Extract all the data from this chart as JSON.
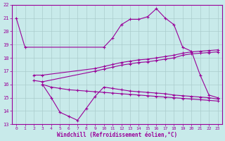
{
  "xlabel": "Windchill (Refroidissement éolien,°C)",
  "ylabel": "",
  "bg_color": "#c8eaea",
  "line_color": "#990099",
  "grid_color": "#aacccc",
  "xlim": [
    -0.5,
    23.5
  ],
  "ylim": [
    13,
    22
  ],
  "yticks": [
    13,
    14,
    15,
    16,
    17,
    18,
    19,
    20,
    21,
    22
  ],
  "xticks": [
    0,
    1,
    2,
    3,
    4,
    5,
    6,
    7,
    8,
    9,
    10,
    11,
    12,
    13,
    14,
    15,
    16,
    17,
    18,
    19,
    20,
    21,
    22,
    23
  ],
  "line1_x": [
    0,
    1,
    10,
    11,
    12,
    13,
    14,
    15,
    16,
    17,
    18,
    19,
    20,
    21,
    22,
    23
  ],
  "line1_y": [
    21.0,
    18.8,
    18.8,
    19.5,
    20.5,
    20.9,
    20.9,
    21.1,
    21.7,
    21.0,
    20.5,
    18.8,
    18.5,
    16.7,
    15.2,
    15.0
  ],
  "line2_x": [
    2,
    3,
    9,
    10,
    11,
    12,
    13,
    14,
    15,
    16,
    17,
    18,
    19,
    20,
    21,
    22,
    23
  ],
  "line2_y": [
    16.7,
    16.7,
    17.2,
    17.35,
    17.5,
    17.65,
    17.75,
    17.85,
    17.9,
    18.0,
    18.1,
    18.2,
    18.35,
    18.45,
    18.5,
    18.55,
    18.6
  ],
  "line3_x": [
    2,
    3,
    9,
    10,
    11,
    12,
    13,
    14,
    15,
    16,
    17,
    18,
    19,
    20,
    21,
    22,
    23
  ],
  "line3_y": [
    16.3,
    16.2,
    17.0,
    17.15,
    17.3,
    17.45,
    17.55,
    17.65,
    17.7,
    17.8,
    17.9,
    18.0,
    18.2,
    18.3,
    18.35,
    18.4,
    18.45
  ],
  "line4_x": [
    3,
    4,
    5,
    6,
    7,
    8,
    9,
    10,
    11,
    12,
    13,
    14,
    15,
    16,
    17,
    18,
    19,
    20,
    21,
    22,
    23
  ],
  "line4_y": [
    16.0,
    15.0,
    13.9,
    13.6,
    13.3,
    14.2,
    15.1,
    15.8,
    15.7,
    15.6,
    15.5,
    15.45,
    15.4,
    15.35,
    15.3,
    15.2,
    15.15,
    15.1,
    15.05,
    15.0,
    14.9
  ],
  "line5_x": [
    3,
    4,
    5,
    6,
    7,
    8,
    9,
    10,
    11,
    12,
    13,
    14,
    15,
    16,
    17,
    18,
    19,
    20,
    21,
    22,
    23
  ],
  "line5_y": [
    16.0,
    15.8,
    15.7,
    15.6,
    15.55,
    15.5,
    15.45,
    15.4,
    15.35,
    15.3,
    15.25,
    15.2,
    15.15,
    15.1,
    15.05,
    15.0,
    14.95,
    14.9,
    14.85,
    14.8,
    14.75
  ]
}
